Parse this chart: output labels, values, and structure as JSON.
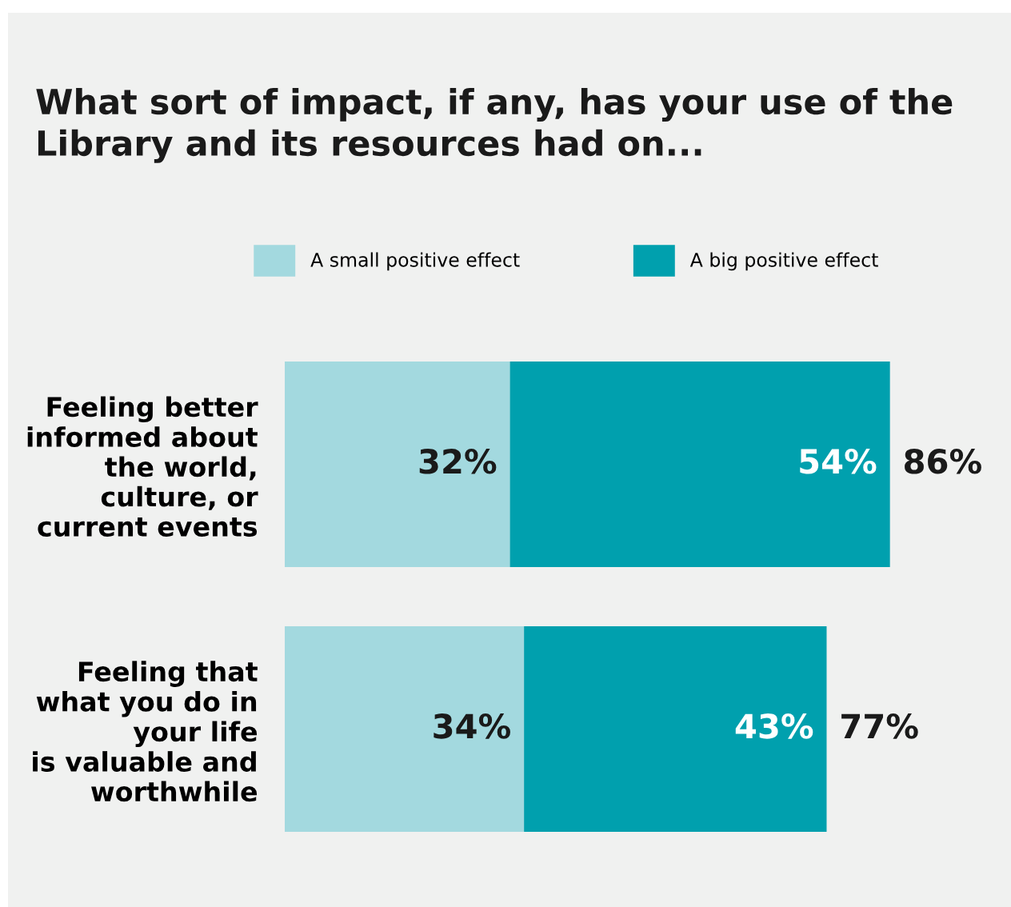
{
  "chart_data": {
    "type": "bar",
    "orientation": "horizontal",
    "stacked": true,
    "title": "What sort of impact, if any, has your use of the\nLibrary and its resources had on...",
    "categories": [
      "Feeling better\ninformed about\nthe world,\nculture, or\ncurrent events",
      "Feeling that\nwhat you do in\nyour life\nis valuable and\nworthwhile"
    ],
    "series": [
      {
        "name": "A small positive effect",
        "color": "#a3d9df",
        "values": [
          32,
          34
        ],
        "value_labels": [
          "32%",
          "34%"
        ]
      },
      {
        "name": "A big positive effect",
        "color": "#00a0ae",
        "values": [
          54,
          43
        ],
        "value_labels": [
          "54%",
          "43%"
        ]
      }
    ],
    "totals": [
      "86%",
      "77%"
    ],
    "legend": "top",
    "grid": false
  }
}
